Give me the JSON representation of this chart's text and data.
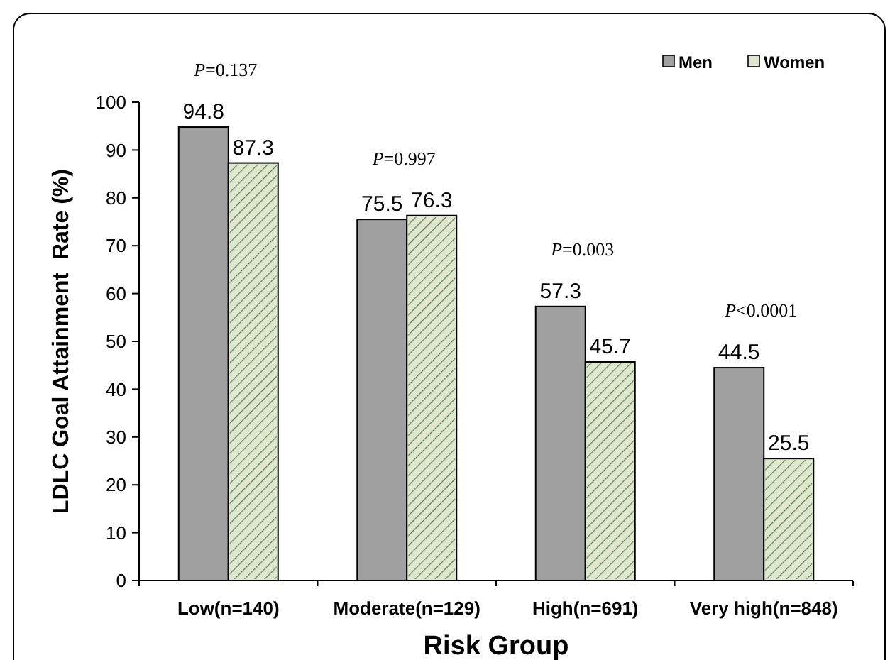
{
  "chart_data": {
    "type": "bar",
    "xlabel": "Risk Group",
    "ylabel": "LDLC Goal Attainment  Rate (%)",
    "categories": [
      "Low(n=140)",
      "Moderate(n=129)",
      "High(n=691)",
      "Very high(n=848)"
    ],
    "series": [
      {
        "name": "Men",
        "color": "#a0a0a0",
        "values": [
          94.8,
          75.5,
          57.3,
          44.5
        ]
      },
      {
        "name": "Women",
        "color": "#dfe8cf",
        "values": [
          87.3,
          76.3,
          45.7,
          25.5
        ]
      }
    ],
    "ylim": [
      0,
      100
    ],
    "yticks": [
      0,
      10,
      20,
      30,
      40,
      50,
      60,
      70,
      80,
      90,
      100
    ],
    "data_labels": true,
    "legend": "top right",
    "grid": false,
    "annotations": [
      "P=0.137",
      "P=0.997",
      "P=0.003",
      "P<0.0001"
    ]
  }
}
